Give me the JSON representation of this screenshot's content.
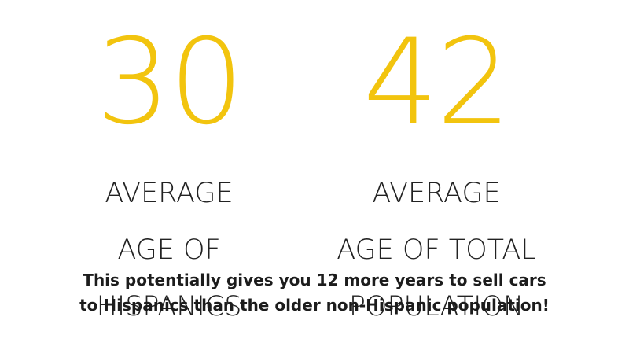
{
  "colors": {
    "accent": "#F2C40E",
    "text": "#222222",
    "background": "#FFFFFF"
  },
  "stats": [
    {
      "number": "30",
      "label_lines": [
        "AVERAGE",
        "AGE OF",
        "HISPANICS"
      ]
    },
    {
      "number": "42",
      "label_lines": [
        "AVERAGE",
        "AGE OF TOTAL",
        "POPULATION"
      ]
    }
  ],
  "footer": {
    "line1": "This potentially gives you 12 more years to sell cars",
    "line2": "to Hispanics than the older non-Hispanic population!"
  }
}
